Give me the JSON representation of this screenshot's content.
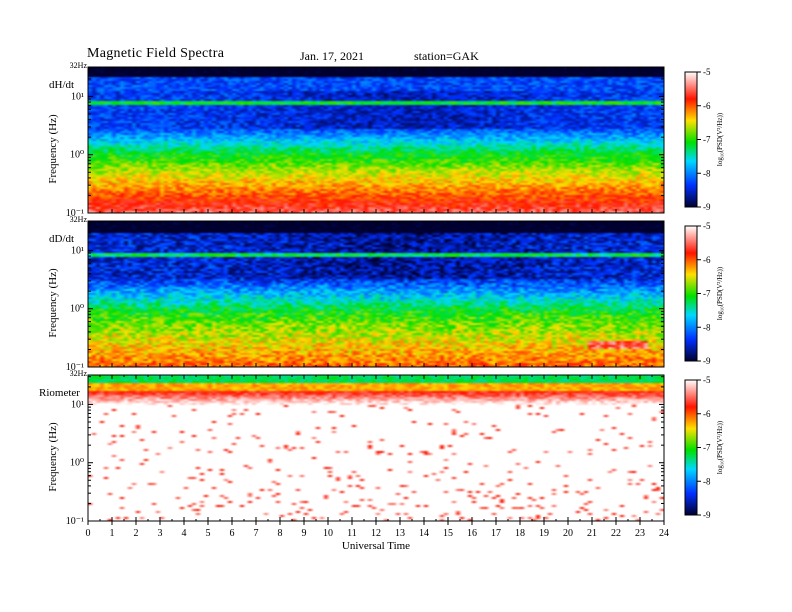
{
  "header": {
    "title": "Magnetic  Field  Spectra",
    "date": "Jan. 17, 2021",
    "station": "station=GAK"
  },
  "chart_data": [
    {
      "type": "heatmap",
      "panel_label": "dH/dt",
      "ylabel": "Frequency (Hz)",
      "top_label": "32Hz",
      "y_ticks": [
        "10¹",
        "10⁰",
        "10⁻¹"
      ],
      "colorbar_label": "log₁₀(PSD(V²/Hz))",
      "colorbar_ticks": [
        "-5",
        "-6",
        "-7",
        "-8",
        "-9"
      ],
      "zlim": [
        -9,
        -5
      ]
    },
    {
      "type": "heatmap",
      "panel_label": "dD/dt",
      "ylabel": "Frequency (Hz)",
      "top_label": "32Hz",
      "y_ticks": [
        "10¹",
        "10⁰",
        "10⁻¹"
      ],
      "colorbar_label": "log₁₀(PSD(V²/Hz))",
      "colorbar_ticks": [
        "-5",
        "-6",
        "-7",
        "-8",
        "-9"
      ],
      "zlim": [
        -9,
        -5
      ]
    },
    {
      "type": "heatmap",
      "panel_label": "Riometer",
      "ylabel": "Frequency (Hz)",
      "top_label": "32Hz",
      "y_ticks": [
        "10¹",
        "10⁰",
        "10⁻¹"
      ],
      "colorbar_label": "log₁₀(PSD(V²/Hz))",
      "colorbar_ticks": [
        "-5",
        "-6",
        "-7",
        "-8",
        "-9"
      ],
      "zlim": [
        -9,
        -5
      ]
    }
  ],
  "x_axis": {
    "label": "Universal Time",
    "ticks": [
      "0",
      "1",
      "2",
      "3",
      "4",
      "5",
      "6",
      "7",
      "8",
      "9",
      "10",
      "11",
      "12",
      "13",
      "14",
      "15",
      "16",
      "17",
      "18",
      "19",
      "20",
      "21",
      "22",
      "23",
      "24"
    ],
    "range": [
      0,
      24
    ]
  }
}
